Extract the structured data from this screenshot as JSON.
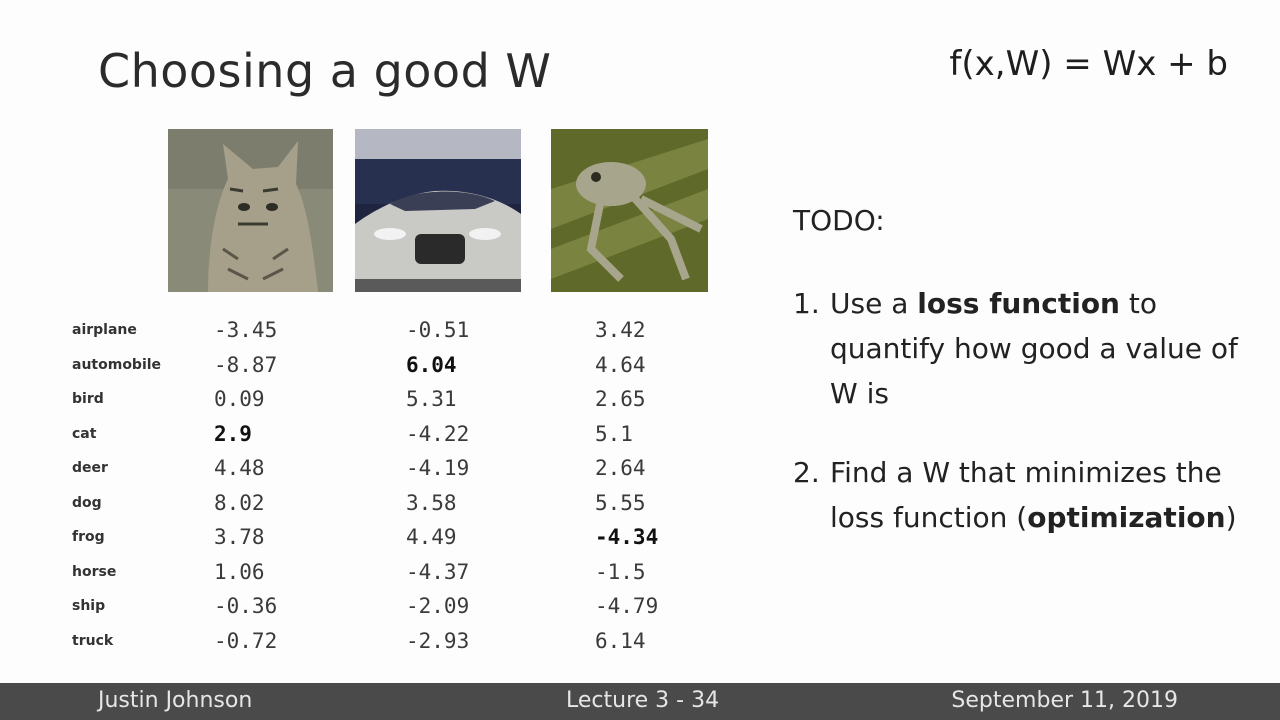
{
  "slide": {
    "title": "Choosing a good W",
    "formula": "f(x,W) = Wx + b"
  },
  "classes": [
    "airplane",
    "automobile",
    "bird",
    "cat",
    "deer",
    "dog",
    "frog",
    "horse",
    "ship",
    "truck"
  ],
  "scores": {
    "cat": [
      "-3.45",
      "-8.87",
      "0.09",
      "2.9",
      "4.48",
      "8.02",
      "3.78",
      "1.06",
      "-0.36",
      "-0.72"
    ],
    "car": [
      "-0.51",
      "6.04",
      "5.31",
      "-4.22",
      "-4.19",
      "3.58",
      "4.49",
      "-4.37",
      "-2.09",
      "-2.93"
    ],
    "frog": [
      "3.42",
      "4.64",
      "2.65",
      "5.1",
      "2.64",
      "5.55",
      "-4.34",
      "-1.5",
      "-4.79",
      "6.14"
    ]
  },
  "highlighted": {
    "cat": 3,
    "car": 1,
    "frog": 6
  },
  "todo": {
    "heading": "TODO:",
    "item1": {
      "num": "1.",
      "pre": "Use a ",
      "bold": "loss function",
      "post": " to quantify how good a value of W is"
    },
    "item2": {
      "num": "2.",
      "pre": "Find a W that minimizes the loss function (",
      "bold": "optimization",
      "post": ")"
    }
  },
  "footer": {
    "author": "Justin Johnson",
    "lecture": "Lecture 3 - 34",
    "date": "September 11, 2019"
  },
  "colors": {
    "footer_bg": "#4a4a4a",
    "footer_text": "#e6e6e6"
  }
}
